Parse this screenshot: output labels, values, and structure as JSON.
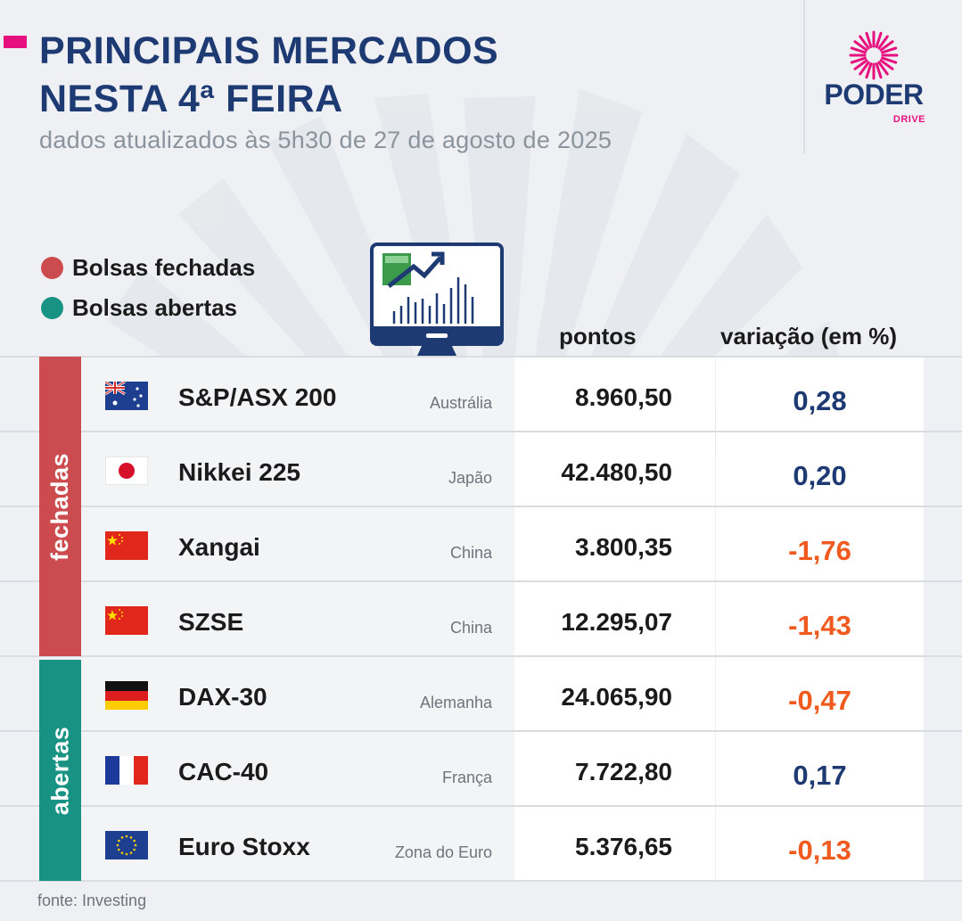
{
  "header": {
    "title_line1": "PRINCIPAIS MERCADOS",
    "title_line2": "NESTA 4ª FEIRA",
    "subtitle": "dados atualizados às 5h30 de 27 de agosto de 2025"
  },
  "logo": {
    "name": "PODER",
    "sub": "DRIVE"
  },
  "legend": [
    {
      "label": "Bolsas fechadas",
      "color": "#cc4b4e"
    },
    {
      "label": "Bolsas abertas",
      "color": "#179283"
    }
  ],
  "colors": {
    "title": "#1d3a73",
    "positive": "#1d3a73",
    "negative": "#f05a1e",
    "closed": "#cc4b4e",
    "open": "#179283",
    "accent": "#e6117e"
  },
  "groups": {
    "closed_label": "fechadas",
    "open_label": "abertas"
  },
  "chart_data": {
    "type": "table",
    "columns": [
      "pontos",
      "variação (em %)"
    ],
    "rows": [
      {
        "index": "S&P/ASX 200",
        "country": "Austrália",
        "flag": "australia-flag",
        "pontos": "8.960,50",
        "variacao": "0,28",
        "sign": "positive",
        "group": "fechadas"
      },
      {
        "index": "Nikkei 225",
        "country": "Japão",
        "flag": "japan-flag",
        "pontos": "42.480,50",
        "variacao": "0,20",
        "sign": "positive",
        "group": "fechadas"
      },
      {
        "index": "Xangai",
        "country": "China",
        "flag": "china-flag",
        "pontos": "3.800,35",
        "variacao": "-1,76",
        "sign": "negative",
        "group": "fechadas"
      },
      {
        "index": "SZSE",
        "country": "China",
        "flag": "china-flag",
        "pontos": "12.295,07",
        "variacao": "-1,43",
        "sign": "negative",
        "group": "fechadas"
      },
      {
        "index": "DAX-30",
        "country": "Alemanha",
        "flag": "germany-flag",
        "pontos": "24.065,90",
        "variacao": "-0,47",
        "sign": "negative",
        "group": "abertas"
      },
      {
        "index": "CAC-40",
        "country": "França",
        "flag": "france-flag",
        "pontos": "7.722,80",
        "variacao": "0,17",
        "sign": "positive",
        "group": "abertas"
      },
      {
        "index": "Euro Stoxx",
        "country": "Zona do Euro",
        "flag": "eu-flag",
        "pontos": "5.376,65",
        "variacao": "-0,13",
        "sign": "negative",
        "group": "abertas"
      }
    ]
  },
  "source": "fonte: Investing"
}
